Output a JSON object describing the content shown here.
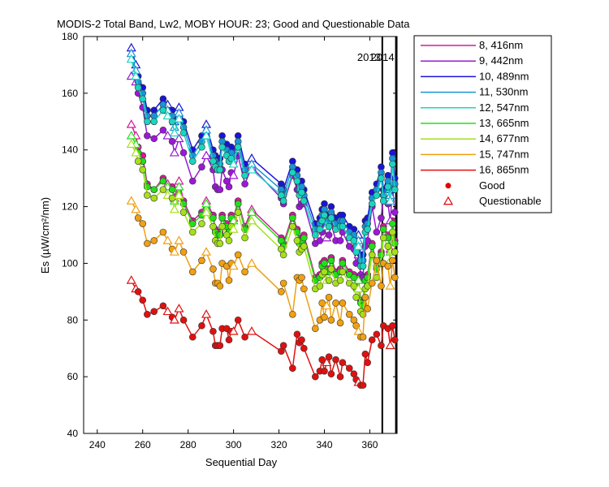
{
  "title": "MODIS-2 Total Band,  Lw2, MOBY HOUR: 23;  Good and Questionable Data",
  "colors": {
    "frame": "#000000",
    "good_marker_legend": "#e00000",
    "questionable_marker_legend": "#e00000"
  },
  "legend_labels": {
    "good": "Good",
    "questionable": "Questionable"
  },
  "chart_data": {
    "type": "line",
    "title": "MODIS-2 Total Band,  Lw2, MOBY HOUR: 23;  Good and Questionable Data",
    "xlabel": "Sequential Day",
    "ylabel": "Es (µW/cm²/nm)",
    "xlim": [
      234,
      372
    ],
    "ylim": [
      40,
      180
    ],
    "x_ticks": [
      240,
      260,
      280,
      300,
      320,
      340,
      360
    ],
    "y_ticks": [
      40,
      60,
      80,
      100,
      120,
      140,
      160,
      180
    ],
    "grid": false,
    "legend_position": "outside-right",
    "year_markers": [
      {
        "x": 365.5,
        "label": "2013"
      },
      {
        "x": 371.5,
        "label": "2014"
      }
    ],
    "x": [
      255,
      257,
      258,
      260,
      262,
      265,
      269,
      271,
      273,
      274,
      276,
      278,
      282,
      286,
      288,
      291,
      292,
      293,
      294,
      295,
      297,
      298,
      299,
      300,
      302,
      305,
      308,
      321,
      322,
      326,
      328,
      329,
      330,
      331,
      336,
      338,
      339,
      340,
      341,
      342,
      343,
      345,
      347,
      348,
      351,
      353,
      354,
      355,
      356,
      357,
      358,
      359,
      361,
      363,
      365,
      366,
      368,
      369,
      370,
      371
    ],
    "questionable": [
      255,
      257,
      271,
      274,
      276,
      288,
      300,
      306,
      308,
      333,
      335,
      337,
      341,
      355,
      369
    ],
    "series": [
      {
        "name": "8, 416nm",
        "color": "#d6189c",
        "values": [
          149.0,
          145.0,
          141.0,
          138.0,
          128.0,
          126.0,
          130.0,
          128.0,
          127.0,
          123.0,
          129.0,
          122.0,
          115.0,
          118.0,
          122.0,
          117.0,
          112.0,
          111.0,
          111.0,
          117.0,
          114.0,
          112.0,
          117.0,
          116.0,
          122.0,
          113.0,
          119.0,
          109.0,
          107.0,
          117.0,
          112.0,
          108.0,
          109.0,
          110.0,
          95.0,
          96.0,
          100.0,
          101.0,
          98.0,
          98.0,
          102.0,
          97.0,
          98.0,
          101.0,
          97.0,
          96.0,
          92.0,
          95.0,
          87.0,
          86.0,
          95.0,
          96.0,
          107.0,
          99.0,
          104.0,
          113.0,
          110.0,
          105.0,
          115.0,
          108.0
        ]
      },
      {
        "name": "9, 442nm",
        "color": "#9b18d6",
        "values": [
          166.0,
          164.0,
          160.0,
          155.0,
          145.0,
          144.0,
          147.0,
          145.0,
          143.0,
          139.0,
          144.0,
          139.0,
          129.0,
          134.0,
          138.0,
          133.0,
          127.0,
          126.0,
          126.0,
          133.0,
          129.0,
          127.0,
          132.0,
          131.0,
          138.0,
          128.0,
          134.0,
          123.0,
          121.0,
          131.0,
          126.0,
          120.0,
          121.0,
          121.0,
          107.0,
          108.0,
          111.0,
          113.0,
          109.0,
          110.0,
          114.0,
          108.0,
          108.0,
          111.0,
          106.0,
          105.0,
          100.0,
          103.0,
          96.0,
          95.0,
          106.0,
          108.0,
          120.0,
          111.0,
          116.0,
          124.0,
          121.0,
          115.0,
          127.0,
          118.0
        ]
      },
      {
        "name": "10, 489nm",
        "color": "#1a14d6",
        "values": [
          176.0,
          170.0,
          166.0,
          162.0,
          154.0,
          154.0,
          158.0,
          156.0,
          154.0,
          150.0,
          155.0,
          150.0,
          140.0,
          145.0,
          149.0,
          140.0,
          138.0,
          137.0,
          137.0,
          145.0,
          142.0,
          140.0,
          141.0,
          139.0,
          145.0,
          135.0,
          137.0,
          128.0,
          126.0,
          136.0,
          133.0,
          128.0,
          129.0,
          126.0,
          114.0,
          116.0,
          119.0,
          121.0,
          117.0,
          117.0,
          120.0,
          116.0,
          117.0,
          117.0,
          113.0,
          112.0,
          108.0,
          110.0,
          103.0,
          103.0,
          115.0,
          116.0,
          125.0,
          128.0,
          134.0,
          126.0,
          131.0,
          126.0,
          139.0,
          130.0
        ]
      },
      {
        "name": "11, 530nm",
        "color": "#1894d6",
        "values": [
          174.0,
          168.0,
          164.0,
          160.0,
          152.0,
          152.0,
          156.0,
          154.0,
          152.0,
          148.0,
          153.0,
          148.0,
          138.0,
          143.0,
          147.0,
          138.0,
          136.0,
          135.0,
          135.0,
          143.0,
          140.0,
          138.0,
          139.0,
          137.0,
          143.0,
          133.0,
          135.0,
          126.0,
          124.0,
          134.0,
          131.0,
          126.0,
          127.0,
          124.0,
          112.0,
          114.0,
          117.0,
          119.0,
          115.0,
          115.0,
          118.0,
          114.0,
          115.0,
          115.0,
          111.0,
          110.0,
          106.0,
          108.0,
          101.0,
          101.0,
          113.0,
          114.0,
          123.0,
          126.0,
          132.0,
          124.0,
          129.0,
          124.0,
          137.0,
          128.0
        ]
      },
      {
        "name": "12, 547nm",
        "color": "#18d6c0",
        "values": [
          172.0,
          166.0,
          162.0,
          158.0,
          150.0,
          150.0,
          154.0,
          152.0,
          150.0,
          146.0,
          151.0,
          146.0,
          136.0,
          141.0,
          145.0,
          136.0,
          134.0,
          133.0,
          133.0,
          141.0,
          138.0,
          136.0,
          137.0,
          135.0,
          141.0,
          131.0,
          133.0,
          124.0,
          122.0,
          132.0,
          129.0,
          124.0,
          125.0,
          122.0,
          110.0,
          112.0,
          115.0,
          117.0,
          113.0,
          113.0,
          116.0,
          112.0,
          113.0,
          113.0,
          109.0,
          108.0,
          104.0,
          106.0,
          99.0,
          99.0,
          111.0,
          112.0,
          121.0,
          124.0,
          130.0,
          122.0,
          127.0,
          122.0,
          135.0,
          126.0
        ]
      },
      {
        "name": "13, 665nm",
        "color": "#22e018",
        "values": [
          145.0,
          142.0,
          139.0,
          136.0,
          127.0,
          126.0,
          129.0,
          127.0,
          126.0,
          122.0,
          127.0,
          121.0,
          114.0,
          117.0,
          121.0,
          116.0,
          111.0,
          110.0,
          110.0,
          116.0,
          113.0,
          111.0,
          116.0,
          115.0,
          121.0,
          112.0,
          118.0,
          108.0,
          106.0,
          116.0,
          111.0,
          107.0,
          108.0,
          109.0,
          94.0,
          95.0,
          99.0,
          100.0,
          97.0,
          97.0,
          101.0,
          96.0,
          97.0,
          100.0,
          96.0,
          95.0,
          91.0,
          94.0,
          86.0,
          85.0,
          94.0,
          95.0,
          106.0,
          98.0,
          103.0,
          112.0,
          109.0,
          104.0,
          114.0,
          107.0
        ]
      },
      {
        "name": "14, 677nm",
        "color": "#a6e018",
        "values": [
          142.0,
          139.0,
          136.0,
          133.0,
          124.0,
          123.0,
          126.0,
          124.0,
          123.0,
          119.0,
          124.0,
          118.0,
          111.0,
          114.0,
          118.0,
          113.0,
          108.0,
          107.0,
          107.0,
          113.0,
          110.0,
          108.0,
          113.0,
          112.0,
          118.0,
          109.0,
          115.0,
          105.0,
          103.0,
          113.0,
          108.0,
          104.0,
          105.0,
          106.0,
          91.0,
          92.0,
          96.0,
          97.0,
          94.0,
          94.0,
          98.0,
          93.0,
          94.0,
          97.0,
          93.0,
          92.0,
          88.0,
          91.0,
          83.0,
          82.0,
          91.0,
          92.0,
          103.0,
          95.0,
          100.0,
          109.0,
          106.0,
          101.0,
          111.0,
          104.0
        ]
      },
      {
        "name": "15, 747nm",
        "color": "#f0a010",
        "values": [
          122.0,
          119.0,
          116.0,
          114.0,
          107.0,
          108.0,
          111.0,
          108.0,
          105.0,
          104.0,
          108.0,
          104.0,
          97.0,
          101.0,
          104.0,
          98.0,
          93.0,
          93.0,
          92.0,
          100.0,
          99.0,
          94.0,
          100.0,
          99.0,
          103.0,
          97.0,
          100.0,
          90.0,
          93.0,
          82.0,
          95.0,
          94.0,
          95.0,
          91.0,
          77.0,
          80.0,
          86.0,
          81.0,
          85.0,
          88.0,
          80.0,
          86.0,
          79.0,
          86.0,
          82.0,
          80.0,
          78.0,
          76.0,
          74.0,
          74.0,
          88.0,
          84.0,
          93.0,
          101.0,
          92.0,
          100.0,
          99.0,
          92.0,
          101.0,
          95.0
        ]
      },
      {
        "name": "16, 865nm",
        "color": "#e01010",
        "values": [
          94.0,
          91.0,
          90.0,
          87.0,
          82.0,
          83.0,
          85.0,
          83.0,
          81.0,
          80.0,
          84.0,
          80.0,
          74.0,
          78.0,
          82.0,
          76.0,
          71.0,
          71.0,
          71.0,
          77.0,
          77.0,
          73.0,
          76.0,
          76.0,
          80.0,
          74.0,
          76.0,
          69.0,
          71.0,
          63.0,
          75.0,
          72.0,
          73.0,
          70.0,
          60.0,
          62.0,
          66.0,
          62.0,
          65.0,
          67.0,
          61.0,
          66.0,
          60.0,
          65.0,
          63.0,
          61.0,
          59.0,
          58.0,
          57.0,
          57.0,
          68.0,
          65.0,
          73.0,
          75.0,
          71.0,
          78.0,
          77.0,
          71.0,
          78.0,
          73.0
        ]
      }
    ]
  }
}
